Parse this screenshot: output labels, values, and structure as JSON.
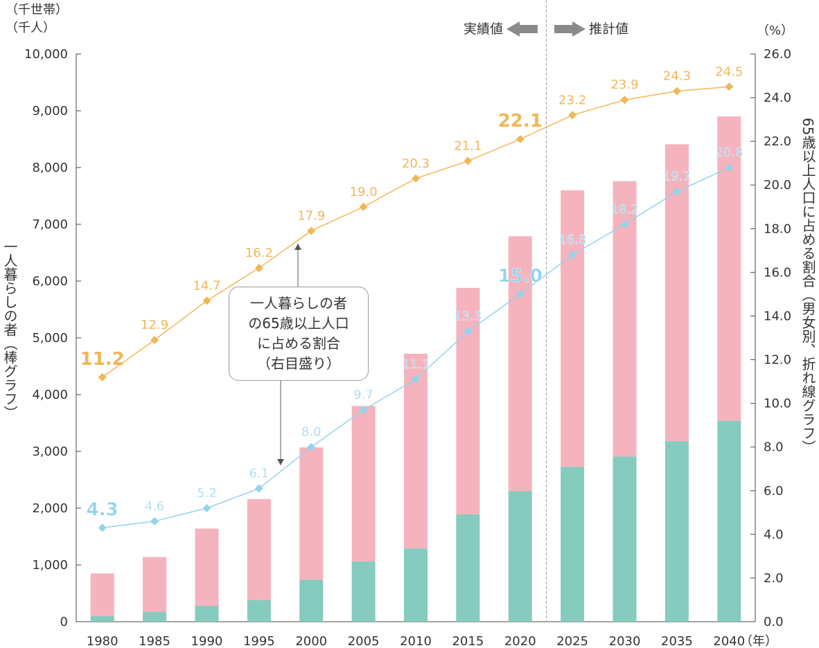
{
  "chart_data": {
    "type": "bar",
    "categories": [
      "1980",
      "1985",
      "1990",
      "1995",
      "2000",
      "2005",
      "2010",
      "2015",
      "2020",
      "2025",
      "2030",
      "2035",
      "2040"
    ],
    "series": [
      {
        "kind": "bar-stack",
        "color": "#85cbbe",
        "values": [
          100,
          170,
          280,
          380,
          740,
          1060,
          1290,
          1890,
          2300,
          2730,
          2910,
          3180,
          3540
        ]
      },
      {
        "kind": "bar-stack",
        "color": "#f5b3bd",
        "values": [
          750,
          970,
          1360,
          1780,
          2330,
          2740,
          3430,
          3990,
          4490,
          4870,
          4850,
          5230,
          5360
        ]
      },
      {
        "kind": "line",
        "axis": "right",
        "color": "#f0b757",
        "values": [
          11.2,
          12.9,
          14.7,
          16.2,
          17.9,
          19.0,
          20.3,
          21.1,
          22.1,
          23.2,
          23.9,
          24.3,
          24.5
        ]
      },
      {
        "kind": "line",
        "axis": "right",
        "color": "#93d3ec",
        "values": [
          4.3,
          4.6,
          5.2,
          6.1,
          8.0,
          9.7,
          11.1,
          13.3,
          15.0,
          16.8,
          18.2,
          19.7,
          20.8
        ]
      }
    ],
    "y_left": {
      "unit_lines": [
        "（千世帯）",
        "（千人）"
      ],
      "label": "一人暮らしの者（棒グラフ）",
      "ylim": [
        0,
        10000
      ],
      "ticks": [
        "0",
        "1,000",
        "2,000",
        "3,000",
        "4,000",
        "5,000",
        "6,000",
        "7,000",
        "8,000",
        "9,000",
        "10,000"
      ]
    },
    "y_right": {
      "unit": "（%）",
      "label": "65歳以上人口に占める割合（男女別、折れ線グラフ）",
      "ylim": [
        0,
        26
      ],
      "ticks": [
        "0.0",
        "2.0",
        "4.0",
        "6.0",
        "8.0",
        "10.0",
        "12.0",
        "14.0",
        "16.0",
        "18.0",
        "20.0",
        "22.0",
        "24.0",
        "26.0"
      ]
    },
    "x_unit": "（年）",
    "bold_labels": [
      "1980",
      "2020"
    ],
    "phase": {
      "divider_after": "2020",
      "actual": "実績値",
      "projected": "推計値"
    },
    "callout": [
      "一人暮らしの者",
      "の65歳以上人口",
      "に占める割合",
      "（右目盛り）"
    ],
    "colors": {
      "male_bar": "#85cbbe",
      "female_bar": "#f5b3bd",
      "female_line": "#f0b757",
      "male_line": "#93d3ec",
      "arrow": "#8a8a8a"
    }
  }
}
